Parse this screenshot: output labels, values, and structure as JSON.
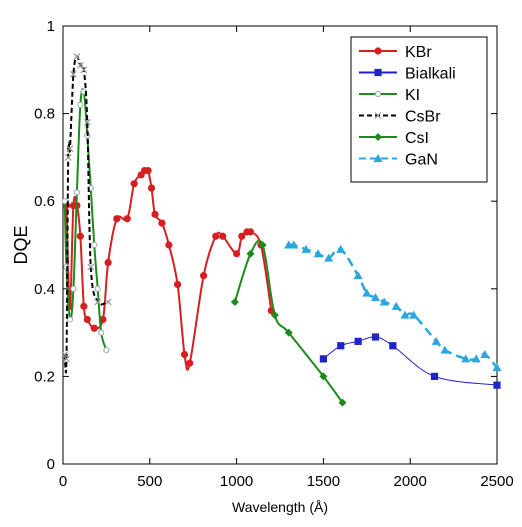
{
  "chart_data": {
    "type": "line",
    "title": "",
    "xlabel": "Wavelength (Å)",
    "ylabel": "DQE",
    "xlim": [
      0,
      2500
    ],
    "ylim": [
      0,
      1
    ],
    "x_ticks": [
      0,
      500,
      1000,
      1500,
      2000,
      2500
    ],
    "y_ticks": [
      0,
      0.2,
      0.4,
      0.6,
      0.8,
      1
    ],
    "y_tick_labels": [
      "0",
      "0.2",
      "0.4",
      "0.6",
      "0.8",
      "1"
    ],
    "grid": false,
    "legend_position": "top-right",
    "series": [
      {
        "name": "KBr",
        "color": "#d42020",
        "marker": "circle",
        "dash": "solid",
        "x": [
          20,
          40,
          60,
          80,
          100,
          120,
          140,
          180,
          230,
          260,
          310,
          370,
          410,
          450,
          470,
          490,
          510,
          530,
          570,
          610,
          660,
          700,
          730,
          810,
          880,
          920,
          1000,
          1030,
          1060,
          1080,
          1140,
          1200
        ],
        "y": [
          0.59,
          0.36,
          0.59,
          0.59,
          0.52,
          0.36,
          0.33,
          0.31,
          0.33,
          0.46,
          0.56,
          0.56,
          0.64,
          0.66,
          0.67,
          0.67,
          0.63,
          0.57,
          0.55,
          0.5,
          0.41,
          0.25,
          0.23,
          0.43,
          0.52,
          0.52,
          0.48,
          0.52,
          0.53,
          0.53,
          0.5,
          0.35
        ]
      },
      {
        "name": "Bialkali",
        "color": "#1f24c8",
        "marker": "square",
        "dash": "solid",
        "x": [
          1500,
          1600,
          1700,
          1800,
          1900,
          2140,
          2500
        ],
        "y": [
          0.24,
          0.27,
          0.28,
          0.29,
          0.27,
          0.2,
          0.18
        ]
      },
      {
        "name": "KI",
        "color": "#1e8a1e",
        "marker": "circle-open",
        "dash": "solid",
        "x": [
          10,
          20,
          40,
          60,
          80,
          100,
          120,
          140,
          160,
          180,
          200,
          220,
          250
        ],
        "y": [
          0.6,
          0.45,
          0.33,
          0.4,
          0.62,
          0.82,
          0.85,
          0.75,
          0.63,
          0.5,
          0.4,
          0.3,
          0.26
        ]
      },
      {
        "name": "CsBr",
        "color": "#000000",
        "marker": "x",
        "dash": "dashed",
        "x": [
          10,
          20,
          30,
          40,
          60,
          80,
          100,
          120,
          140,
          160,
          200,
          260
        ],
        "y": [
          0.25,
          0.24,
          0.7,
          0.72,
          0.89,
          0.93,
          0.91,
          0.9,
          0.78,
          0.45,
          0.37,
          0.37
        ]
      },
      {
        "name": "CsI",
        "color": "#1e8a1e",
        "marker": "diamond",
        "dash": "solid",
        "x": [
          990,
          1080,
          1150,
          1220,
          1300,
          1500,
          1610
        ],
        "y": [
          0.37,
          0.48,
          0.5,
          0.34,
          0.3,
          0.2,
          0.14
        ]
      },
      {
        "name": "GaN",
        "color": "#2aa7df",
        "marker": "triangle",
        "dash": "dashed",
        "x": [
          1300,
          1330,
          1400,
          1470,
          1530,
          1600,
          1700,
          1750,
          1800,
          1850,
          1920,
          1970,
          2020,
          2150,
          2200,
          2320,
          2380,
          2430,
          2500
        ],
        "y": [
          0.5,
          0.5,
          0.49,
          0.48,
          0.47,
          0.49,
          0.43,
          0.39,
          0.38,
          0.37,
          0.36,
          0.34,
          0.34,
          0.28,
          0.26,
          0.24,
          0.24,
          0.25,
          0.22
        ]
      }
    ]
  }
}
